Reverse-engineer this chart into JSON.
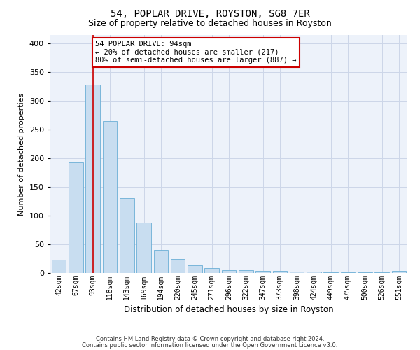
{
  "title1": "54, POPLAR DRIVE, ROYSTON, SG8 7ER",
  "title2": "Size of property relative to detached houses in Royston",
  "xlabel": "Distribution of detached houses by size in Royston",
  "ylabel": "Number of detached properties",
  "categories": [
    "42sqm",
    "67sqm",
    "93sqm",
    "118sqm",
    "143sqm",
    "169sqm",
    "194sqm",
    "220sqm",
    "245sqm",
    "271sqm",
    "296sqm",
    "322sqm",
    "347sqm",
    "373sqm",
    "398sqm",
    "424sqm",
    "449sqm",
    "475sqm",
    "500sqm",
    "526sqm",
    "551sqm"
  ],
  "values": [
    23,
    193,
    328,
    265,
    130,
    88,
    40,
    25,
    14,
    8,
    5,
    5,
    4,
    4,
    3,
    2,
    1,
    1,
    1,
    1,
    4
  ],
  "bar_color": "#c8ddf0",
  "bar_edge_color": "#6aaed6",
  "bar_linewidth": 0.6,
  "vline_x_index": 2,
  "vline_color": "#cc0000",
  "annotation_line1": "54 POPLAR DRIVE: 94sqm",
  "annotation_line2": "← 20% of detached houses are smaller (217)",
  "annotation_line3": "80% of semi-detached houses are larger (887) →",
  "annotation_box_color": "#ffffff",
  "annotation_box_edge_color": "#cc0000",
  "yticks": [
    0,
    50,
    100,
    150,
    200,
    250,
    300,
    350,
    400
  ],
  "ylim": [
    0,
    415
  ],
  "grid_color": "#ccd6e8",
  "background_color": "#edf2fa",
  "footer1": "Contains HM Land Registry data © Crown copyright and database right 2024.",
  "footer2": "Contains public sector information licensed under the Open Government Licence v3.0.",
  "title1_fontsize": 10,
  "title2_fontsize": 9,
  "ylabel_fontsize": 8,
  "xlabel_fontsize": 8.5,
  "footer_fontsize": 6,
  "annot_fontsize": 7.5,
  "ytick_fontsize": 8,
  "xtick_fontsize": 7
}
